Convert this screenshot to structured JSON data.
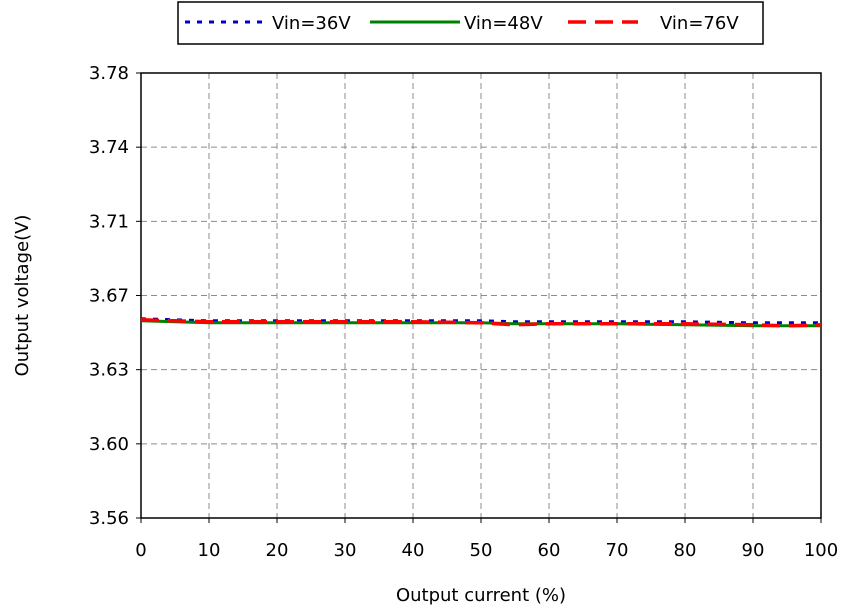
{
  "chart_data": {
    "type": "line",
    "title": "",
    "xlabel": "Output current (%)",
    "ylabel": "Output voltage(V)",
    "xlim": [
      0,
      100
    ],
    "ylim": [
      3.56,
      3.78
    ],
    "x_ticks": [
      0,
      10,
      20,
      30,
      40,
      50,
      60,
      70,
      80,
      90,
      100
    ],
    "y_ticks": [
      "3.56",
      "3.60",
      "3.63",
      "3.67",
      "3.71",
      "3.74",
      "3.78"
    ],
    "grid": true,
    "legend_position": "top-center",
    "x": [
      0,
      5,
      10,
      20,
      30,
      40,
      50,
      55,
      60,
      70,
      80,
      90,
      95,
      100
    ],
    "series": [
      {
        "name": "Vin=36V",
        "color": "#0000cc",
        "style": "dotted",
        "values": [
          3.6585,
          3.658,
          3.6575,
          3.6575,
          3.6575,
          3.6575,
          3.6575,
          3.657,
          3.657,
          3.657,
          3.657,
          3.6565,
          3.6565,
          3.6565
        ]
      },
      {
        "name": "Vin=48V",
        "color": "#008000",
        "style": "solid",
        "values": [
          3.6575,
          3.657,
          3.6565,
          3.6565,
          3.6565,
          3.6565,
          3.6565,
          3.656,
          3.656,
          3.656,
          3.6555,
          3.655,
          3.655,
          3.655
        ]
      },
      {
        "name": "Vin=76V",
        "color": "#ff0000",
        "style": "dashed",
        "values": [
          3.658,
          3.6575,
          3.657,
          3.657,
          3.657,
          3.657,
          3.6565,
          3.6555,
          3.656,
          3.656,
          3.656,
          3.6555,
          3.655,
          3.6555
        ]
      }
    ]
  }
}
